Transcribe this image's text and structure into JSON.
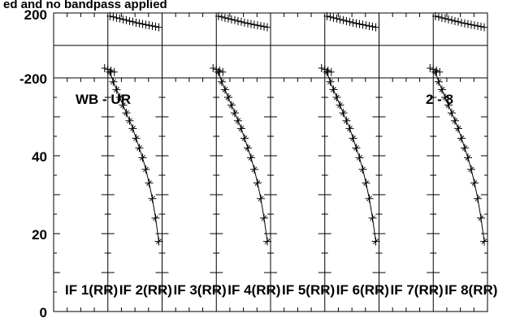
{
  "chart_data": {
    "type": "line",
    "title": "ed and no bandpass applied",
    "baseline": "WB - UR",
    "baseline_range": "2 - 8",
    "phase_panel": {
      "ylim": [
        -200,
        200
      ],
      "ticks": [
        "200",
        "-200"
      ],
      "grid_y": 0
    },
    "amp_panel": {
      "ylim": [
        0,
        60
      ],
      "ticks": [
        "40",
        "20",
        "0"
      ],
      "tick_values": [
        40,
        20,
        0
      ]
    },
    "panels": [
      {
        "label": "IF 1(RR)",
        "has_data": false
      },
      {
        "label": "IF 2(RR)",
        "has_data": true
      },
      {
        "label": "IF 3(RR)",
        "has_data": false
      },
      {
        "label": "IF 4(RR)",
        "has_data": true
      },
      {
        "label": "IF 5(RR)",
        "has_data": false
      },
      {
        "label": "IF 6(RR)",
        "has_data": true
      },
      {
        "label": "IF 7(RR)",
        "has_data": false
      },
      {
        "label": "IF 8(RR)",
        "has_data": true
      }
    ],
    "series": {
      "x": [
        0.04,
        0.1,
        0.16,
        0.22,
        0.28,
        0.34,
        0.4,
        0.46,
        0.52,
        0.58,
        0.64,
        0.7,
        0.76,
        0.82,
        0.88,
        0.94
      ],
      "amplitude": [
        61.5,
        59.0,
        57.0,
        55.0,
        53.0,
        51.0,
        49.0,
        47.0,
        44.5,
        42.0,
        39.5,
        36.5,
        33.0,
        29.0,
        24.0,
        18.0
      ],
      "phase": [
        180,
        176,
        170,
        166,
        160,
        156,
        150,
        146,
        140,
        136,
        132,
        128,
        124,
        120,
        116,
        112
      ]
    }
  }
}
